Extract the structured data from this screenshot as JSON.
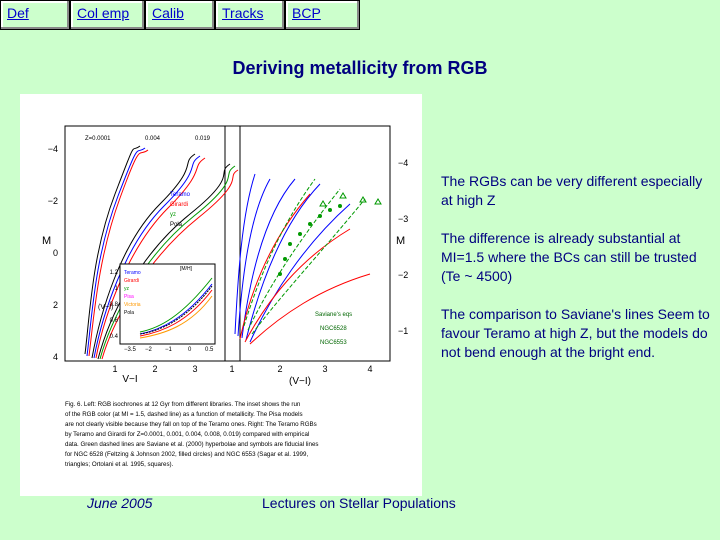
{
  "nav": {
    "items": [
      {
        "label": "Def",
        "width": 70
      },
      {
        "label": "Col emp",
        "width": 75
      },
      {
        "label": "Calib",
        "width": 70
      },
      {
        "label": "Tracks",
        "width": 70
      },
      {
        "label": "BCP",
        "width": 75
      }
    ]
  },
  "slide": {
    "title": "Deriving metallicity from RGB",
    "bullets": [
      "The RGBs can be very different especially at high Z",
      "The difference is already substantial at MI=1.5 where the BCs can still be trusted (Te ~ 4500)",
      "The comparison to Saviane's lines Seem to favour Teramo at high Z, but the models do not bend enough at the bright end."
    ],
    "footer_date": "June 2005",
    "footer_title": "Lectures on Stellar Populations"
  },
  "figure": {
    "left_panel": {
      "y_ticks": [
        "−4",
        "−2",
        "0",
        "2",
        "4"
      ],
      "x_ticks": [
        "1",
        "2",
        "3"
      ],
      "x_label": "V−I",
      "y_label": "M",
      "z_labels": [
        "Z=0.0001",
        "0.004",
        "0.019"
      ],
      "legend": [
        "Teramo",
        "Girardi",
        "yz",
        "Pola"
      ],
      "inset_legend": [
        "Teramo",
        "Girardi",
        "yz",
        "Pisa",
        "Victoria",
        "Pola"
      ],
      "inset_x_label": "[M/H]",
      "inset_y_label": "(V−I)",
      "inset_x_ticks": [
        "−3.5",
        "−2",
        "−1",
        "0",
        "0.5"
      ],
      "inset_y_ticks": [
        "1.2",
        "1",
        "0.8",
        "0.6",
        "0.4"
      ]
    },
    "right_panel": {
      "y_ticks": [
        "−4",
        "−3",
        "−2",
        "−1"
      ],
      "x_ticks": [
        "1",
        "2",
        "3",
        "4"
      ],
      "x_label": "(V−I)",
      "y_label": "M",
      "legend": [
        "Saviane's eqs",
        "NGC6528",
        "NGC6553"
      ]
    },
    "caption": [
      "Fig. 6.   Left: RGB isochrones at 12 Gyr from different libraries. The inset shows the run",
      "of the RGB color (at MI = 1.5, dashed line) as a function of metallicity. The Pisa models",
      "are not clearly visible because they fall on top of the Teramo ones. Right: The Teramo RGBs",
      "by Teramo and Girardi for Z=0.0001, 0.001, 0.004, 0.008, 0.019) compared with empirical",
      "data. Green dashed lines are Saviane et al. (2000) hyperbolae and symbols are fiducial lines",
      "for NGC 6528 (Feltzing & Johnson 2002, filled circles) and NGC 6553 (Sagar et al. 1999,",
      "triangles; Ortolani et al. 1995, squares)."
    ],
    "colors": {
      "teramo": "#0000ff",
      "girardi": "#ff0000",
      "yz": "#009900",
      "pola": "#000000",
      "pisa": "#ff00ff",
      "victoria": "#ff9900"
    }
  }
}
